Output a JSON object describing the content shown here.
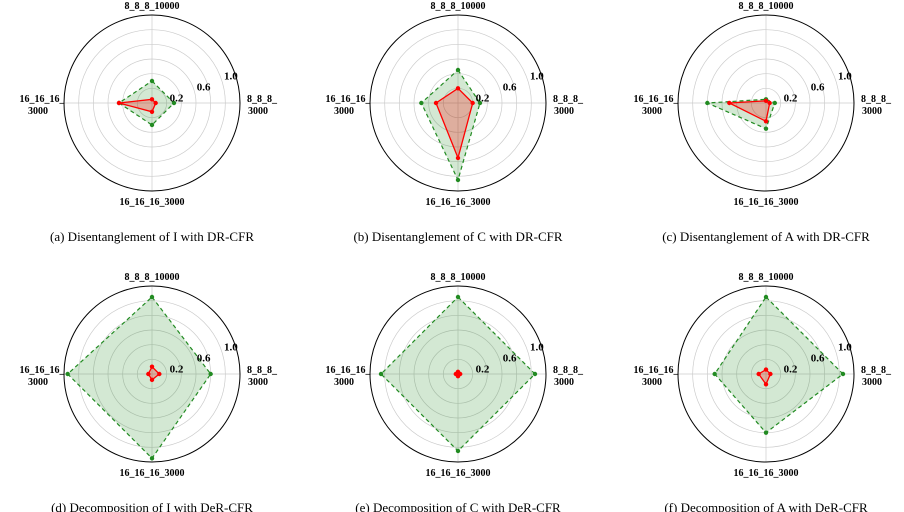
{
  "chart_data": [
    {
      "type": "radar",
      "caption": "(a) Disentanglement of I with DR-CFR",
      "axes": [
        "8_8_8_10000",
        "8_8_8_3000",
        "16_16_16_3000",
        "16_16_16_3000"
      ],
      "rticks": [
        "0.2",
        "0.6",
        "1.0"
      ],
      "rlim": [
        0,
        1.2
      ],
      "series": [
        {
          "color": "#228B22",
          "style": "dashed",
          "fill": true,
          "values": [
            0.3,
            0.3,
            0.3,
            0.45
          ]
        },
        {
          "color": "#FF0000",
          "style": "solid",
          "fill": true,
          "values": [
            0.05,
            0.05,
            0.12,
            0.45
          ]
        }
      ]
    },
    {
      "type": "radar",
      "caption": "(b) Disentanglement of C with DR-CFR",
      "axes": [
        "8_8_8_10000",
        "8_8_8_3000",
        "16_16_16_3000",
        "16_16_16_3000"
      ],
      "rticks": [
        "0.2",
        "0.6",
        "1.0"
      ],
      "rlim": [
        0,
        1.2
      ],
      "series": [
        {
          "color": "#228B22",
          "style": "dashed",
          "fill": true,
          "values": [
            0.45,
            0.3,
            1.05,
            0.5
          ]
        },
        {
          "color": "#FF0000",
          "style": "solid",
          "fill": true,
          "values": [
            0.2,
            0.2,
            0.75,
            0.3
          ]
        }
      ]
    },
    {
      "type": "radar",
      "caption": "(c) Disentanglement of A with DR-CFR",
      "axes": [
        "8_8_8_10000",
        "8_8_8_3000",
        "16_16_16_3000",
        "16_16_16_3000"
      ],
      "rticks": [
        "0.2",
        "0.6",
        "1.0"
      ],
      "rlim": [
        0,
        1.2
      ],
      "series": [
        {
          "color": "#228B22",
          "style": "dashed",
          "fill": true,
          "values": [
            0.05,
            0.12,
            0.35,
            0.8
          ]
        },
        {
          "color": "#FF0000",
          "style": "solid",
          "fill": true,
          "values": [
            0.03,
            0.05,
            0.25,
            0.5
          ]
        }
      ]
    },
    {
      "type": "radar",
      "caption": "(d) Decomposition of I with DeR-CFR",
      "axes": [
        "8_8_8_10000",
        "8_8_8_3000",
        "16_16_16_3000",
        "16_16_16_3000"
      ],
      "rticks": [
        "0.2",
        "0.6",
        "1.0"
      ],
      "rlim": [
        0,
        1.2
      ],
      "series": [
        {
          "color": "#228B22",
          "style": "dashed",
          "fill": true,
          "values": [
            1.05,
            0.8,
            1.15,
            1.15
          ]
        },
        {
          "color": "#FF0000",
          "style": "solid",
          "fill": true,
          "values": [
            0.1,
            0.1,
            0.08,
            0.05
          ]
        }
      ]
    },
    {
      "type": "radar",
      "caption": "(e) Decomposition of C with DeR-CFR",
      "axes": [
        "8_8_8_10000",
        "8_8_8_3000",
        "16_16_16_3000",
        "16_16_16_3000"
      ],
      "rticks": [
        "0.2",
        "0.6",
        "1.0"
      ],
      "rlim": [
        0,
        1.2
      ],
      "series": [
        {
          "color": "#228B22",
          "style": "dashed",
          "fill": true,
          "values": [
            1.05,
            1.05,
            1.05,
            1.05
          ]
        },
        {
          "color": "#FF0000",
          "style": "solid",
          "fill": true,
          "values": [
            0.03,
            0.03,
            0.03,
            0.03
          ]
        }
      ]
    },
    {
      "type": "radar",
      "caption": "(f) Decomposition of A with DeR-CFR",
      "axes": [
        "8_8_8_10000",
        "8_8_8_3000",
        "16_16_16_3000",
        "16_16_16_3000"
      ],
      "rticks": [
        "0.2",
        "0.6",
        "1.0"
      ],
      "rlim": [
        0,
        1.2
      ],
      "series": [
        {
          "color": "#228B22",
          "style": "dashed",
          "fill": true,
          "values": [
            1.05,
            1.05,
            0.8,
            0.7
          ]
        },
        {
          "color": "#FF0000",
          "style": "solid",
          "fill": true,
          "values": [
            0.06,
            0.06,
            0.14,
            0.1
          ]
        }
      ]
    }
  ]
}
